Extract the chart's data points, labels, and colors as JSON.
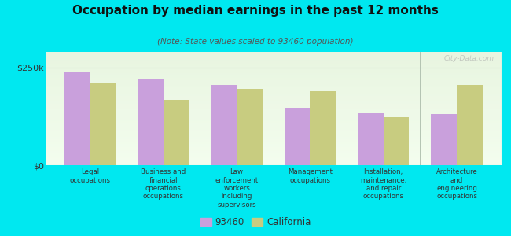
{
  "title": "Occupation by median earnings in the past 12 months",
  "subtitle": "(Note: State values scaled to 93460 population)",
  "categories": [
    "Legal\noccupations",
    "Business and\nfinancial\noperations\noccupations",
    "Law\nenforcement\nworkers\nincluding\nsupervisors",
    "Management\noccupations",
    "Installation,\nmaintenance,\nand repair\noccupations",
    "Architecture\nand\nengineering\noccupations"
  ],
  "values_93460": [
    238000,
    220000,
    205000,
    148000,
    133000,
    130000
  ],
  "values_california": [
    210000,
    168000,
    195000,
    190000,
    122000,
    205000
  ],
  "color_93460": "#c9a0dc",
  "color_california": "#c8cc80",
  "yticks": [
    0,
    250000
  ],
  "ytick_labels": [
    "$0",
    "$250k"
  ],
  "ylim": [
    0,
    290000
  ],
  "outer_bg": "#00e8f0",
  "watermark": "City-Data.com",
  "legend_label_93460": "93460",
  "legend_label_california": "California"
}
